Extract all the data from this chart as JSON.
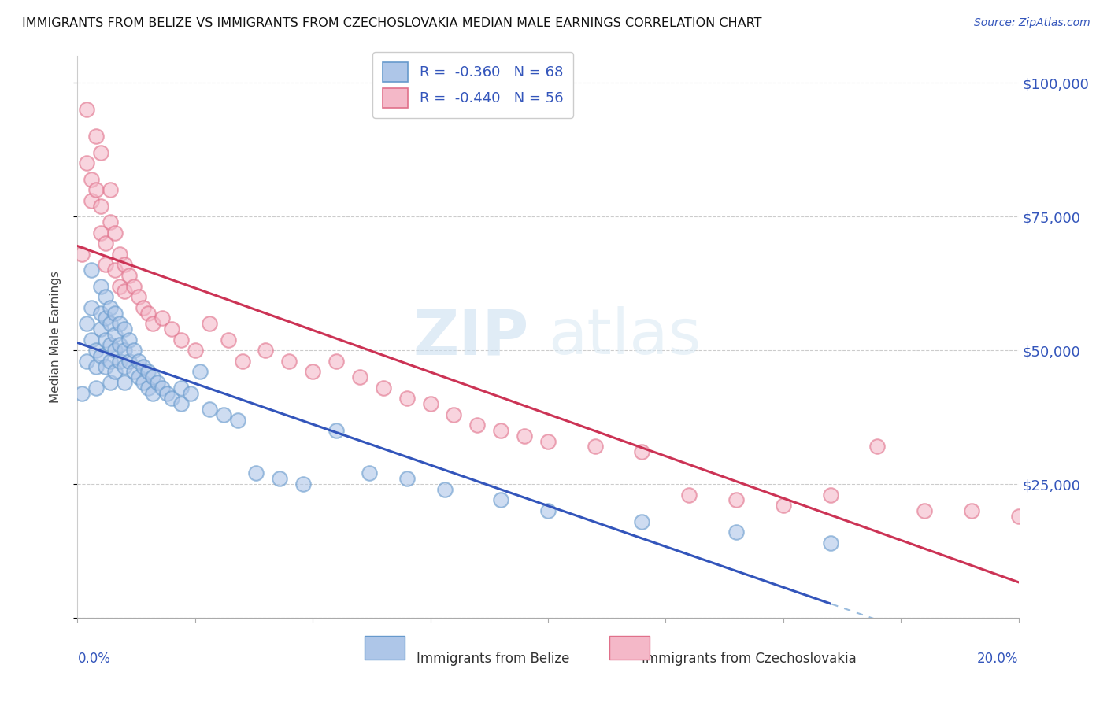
{
  "title": "IMMIGRANTS FROM BELIZE VS IMMIGRANTS FROM CZECHOSLOVAKIA MEDIAN MALE EARNINGS CORRELATION CHART",
  "source": "Source: ZipAtlas.com",
  "ylabel": "Median Male Earnings",
  "yticks": [
    0,
    25000,
    50000,
    75000,
    100000
  ],
  "ytick_labels": [
    "",
    "$25,000",
    "$50,000",
    "$75,000",
    "$100,000"
  ],
  "xlim": [
    0.0,
    0.2
  ],
  "ylim": [
    0,
    105000
  ],
  "belize_color": "#aec6e8",
  "belize_edge_color": "#6699cc",
  "czech_color": "#f4b8c8",
  "czech_edge_color": "#e0708a",
  "belize_line_color": "#3355bb",
  "czech_line_color": "#cc3355",
  "dashed_line_color": "#99bbdd",
  "watermark_zip": "ZIP",
  "watermark_atlas": "atlas",
  "belize_x": [
    0.001,
    0.002,
    0.002,
    0.003,
    0.003,
    0.003,
    0.004,
    0.004,
    0.004,
    0.005,
    0.005,
    0.005,
    0.005,
    0.006,
    0.006,
    0.006,
    0.006,
    0.007,
    0.007,
    0.007,
    0.007,
    0.007,
    0.008,
    0.008,
    0.008,
    0.008,
    0.009,
    0.009,
    0.009,
    0.01,
    0.01,
    0.01,
    0.01,
    0.011,
    0.011,
    0.012,
    0.012,
    0.013,
    0.013,
    0.014,
    0.014,
    0.015,
    0.015,
    0.016,
    0.016,
    0.017,
    0.018,
    0.019,
    0.02,
    0.022,
    0.022,
    0.024,
    0.026,
    0.028,
    0.031,
    0.034,
    0.038,
    0.043,
    0.048,
    0.055,
    0.062,
    0.07,
    0.078,
    0.09,
    0.1,
    0.12,
    0.14,
    0.16
  ],
  "belize_y": [
    42000,
    55000,
    48000,
    65000,
    58000,
    52000,
    50000,
    47000,
    43000,
    62000,
    57000,
    54000,
    49000,
    60000,
    56000,
    52000,
    47000,
    58000,
    55000,
    51000,
    48000,
    44000,
    57000,
    53000,
    50000,
    46000,
    55000,
    51000,
    48000,
    54000,
    50000,
    47000,
    44000,
    52000,
    48000,
    50000,
    46000,
    48000,
    45000,
    47000,
    44000,
    46000,
    43000,
    45000,
    42000,
    44000,
    43000,
    42000,
    41000,
    43000,
    40000,
    42000,
    46000,
    39000,
    38000,
    37000,
    27000,
    26000,
    25000,
    35000,
    27000,
    26000,
    24000,
    22000,
    20000,
    18000,
    16000,
    14000
  ],
  "czech_x": [
    0.001,
    0.002,
    0.002,
    0.003,
    0.003,
    0.004,
    0.004,
    0.005,
    0.005,
    0.005,
    0.006,
    0.006,
    0.007,
    0.007,
    0.008,
    0.008,
    0.009,
    0.009,
    0.01,
    0.01,
    0.011,
    0.012,
    0.013,
    0.014,
    0.015,
    0.016,
    0.018,
    0.02,
    0.022,
    0.025,
    0.028,
    0.032,
    0.04,
    0.05,
    0.06,
    0.07,
    0.08,
    0.09,
    0.1,
    0.12,
    0.13,
    0.14,
    0.15,
    0.17,
    0.19,
    0.2,
    0.095,
    0.085,
    0.075,
    0.055,
    0.045,
    0.035,
    0.065,
    0.11,
    0.16,
    0.18
  ],
  "czech_y": [
    68000,
    95000,
    85000,
    82000,
    78000,
    90000,
    80000,
    87000,
    77000,
    72000,
    70000,
    66000,
    80000,
    74000,
    72000,
    65000,
    68000,
    62000,
    66000,
    61000,
    64000,
    62000,
    60000,
    58000,
    57000,
    55000,
    56000,
    54000,
    52000,
    50000,
    55000,
    52000,
    50000,
    46000,
    45000,
    41000,
    38000,
    35000,
    33000,
    31000,
    23000,
    22000,
    21000,
    32000,
    20000,
    19000,
    34000,
    36000,
    40000,
    48000,
    48000,
    48000,
    43000,
    32000,
    23000,
    20000
  ]
}
